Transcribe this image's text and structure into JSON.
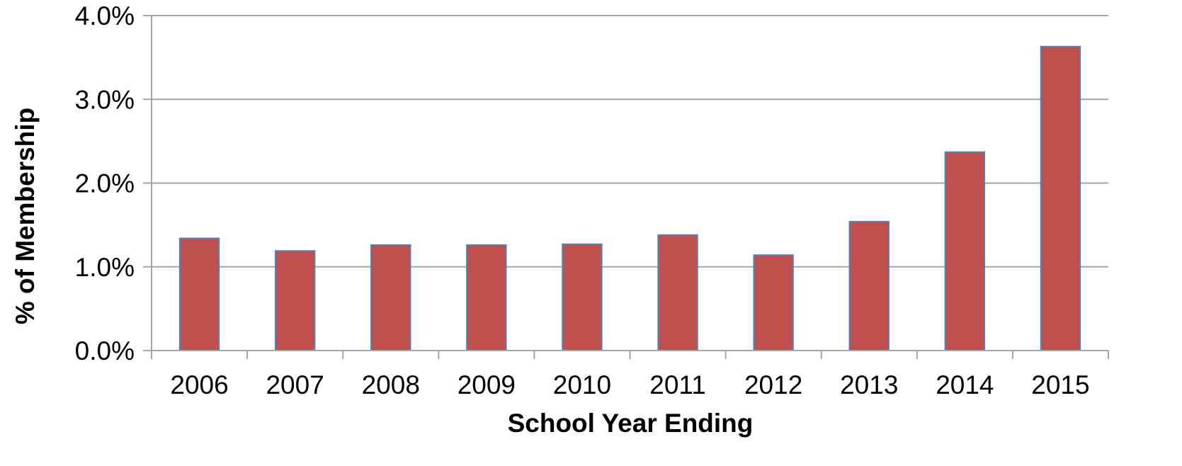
{
  "chart_data": {
    "type": "bar",
    "title": "",
    "xlabel": "School Year Ending",
    "ylabel": "% of Membership",
    "categories": [
      "2006",
      "2007",
      "2008",
      "2009",
      "2010",
      "2011",
      "2012",
      "2013",
      "2014",
      "2015"
    ],
    "series": [
      {
        "values": [
          1.34,
          1.19,
          1.26,
          1.26,
          1.27,
          1.38,
          1.14,
          1.54,
          2.37,
          3.63
        ]
      }
    ],
    "ylim": [
      0,
      4
    ],
    "yticks": [
      0,
      1,
      2,
      3,
      4
    ],
    "ytick_labels": [
      "0.0%",
      "1.0%",
      "2.0%",
      "3.0%",
      "4.0%"
    ],
    "grid": true,
    "legend": "none",
    "colors": {
      "bar_fill": "#c0504d",
      "bar_stroke": "#4f81bd",
      "grid": "#a6a6a6",
      "axis": "#a6a6a6"
    }
  }
}
